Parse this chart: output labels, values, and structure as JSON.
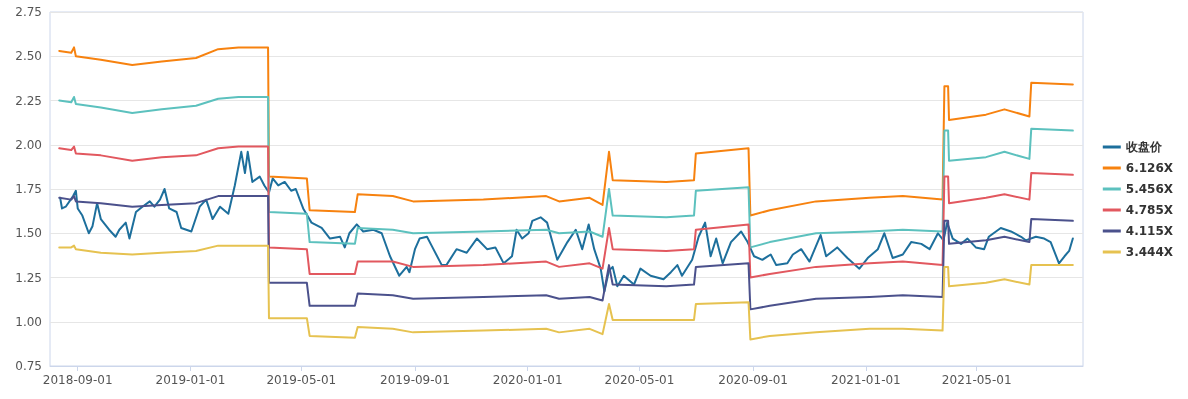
{
  "chart_data": {
    "type": "line",
    "x": [
      "2018-08-12",
      "2018-08-25",
      "2018-08-28",
      "2018-08-30",
      "2018-09-26",
      "2018-10-30",
      "2018-12-01",
      "2019-01-07",
      "2019-01-31",
      "2019-02-22",
      "2019-03-26",
      "2019-03-27",
      "2019-05-07",
      "2019-05-10",
      "2019-06-28",
      "2019-07-01",
      "2019-08-08",
      "2019-08-30",
      "2019-11-14",
      "2020-01-21",
      "2020-02-04",
      "2020-03-08",
      "2020-03-22",
      "2020-03-29",
      "2020-04-02",
      "2020-05-30",
      "2020-06-29",
      "2020-07-01",
      "2020-08-27",
      "2020-08-29",
      "2020-09-19",
      "2020-11-08",
      "2021-01-05",
      "2021-02-10",
      "2021-03-25",
      "2021-03-27",
      "2021-03-31",
      "2021-04-01",
      "2021-05-11",
      "2021-05-31",
      "2021-06-27",
      "2021-06-29",
      "2021-08-13"
    ],
    "series": [
      {
        "name": "收盘价",
        "color": "#1d6f9c",
        "x": [
          "2018-08-13",
          "2018-08-15",
          "2018-08-19",
          "2018-08-27",
          "2018-08-30",
          "2018-09-01",
          "2018-09-06",
          "2018-09-13",
          "2018-09-17",
          "2018-09-22",
          "2018-09-26",
          "2018-10-05",
          "2018-10-12",
          "2018-10-16",
          "2018-10-23",
          "2018-10-27",
          "2018-11-03",
          "2018-11-10",
          "2018-11-18",
          "2018-11-23",
          "2018-11-29",
          "2018-12-04",
          "2018-12-09",
          "2018-12-17",
          "2018-12-22",
          "2019-01-02",
          "2019-01-11",
          "2019-01-18",
          "2019-01-25",
          "2019-02-02",
          "2019-02-11",
          "2019-02-18",
          "2019-02-25",
          "2019-03-01",
          "2019-03-04",
          "2019-03-09",
          "2019-03-17",
          "2019-03-22",
          "2019-03-27",
          "2019-03-31",
          "2019-04-06",
          "2019-04-13",
          "2019-04-20",
          "2019-04-25",
          "2019-05-03",
          "2019-05-12",
          "2019-05-23",
          "2019-06-01",
          "2019-06-12",
          "2019-06-17",
          "2019-06-22",
          "2019-06-30",
          "2019-07-07",
          "2019-07-18",
          "2019-07-27",
          "2019-08-05",
          "2019-08-15",
          "2019-08-23",
          "2019-08-26",
          "2019-09-01",
          "2019-09-06",
          "2019-09-14",
          "2019-09-19",
          "2019-09-30",
          "2019-10-05",
          "2019-10-16",
          "2019-10-27",
          "2019-11-07",
          "2019-11-18",
          "2019-11-27",
          "2019-12-06",
          "2019-12-15",
          "2019-12-20",
          "2019-12-26",
          "2020-01-02",
          "2020-01-06",
          "2020-01-15",
          "2020-01-22",
          "2020-02-02",
          "2020-02-13",
          "2020-02-22",
          "2020-02-29",
          "2020-03-07",
          "2020-03-13",
          "2020-03-20",
          "2020-03-24",
          "2020-03-29",
          "2020-04-02",
          "2020-04-07",
          "2020-04-14",
          "2020-04-25",
          "2020-05-02",
          "2020-05-13",
          "2020-05-27",
          "2020-06-04",
          "2020-06-11",
          "2020-06-16",
          "2020-06-27",
          "2020-07-04",
          "2020-07-11",
          "2020-07-17",
          "2020-07-23",
          "2020-07-30",
          "2020-08-08",
          "2020-08-19",
          "2020-08-26",
          "2020-09-02",
          "2020-09-11",
          "2020-09-20",
          "2020-09-26",
          "2020-10-08",
          "2020-10-14",
          "2020-10-23",
          "2020-11-01",
          "2020-11-13",
          "2020-11-19",
          "2020-12-01",
          "2020-12-12",
          "2020-12-25",
          "2021-01-03",
          "2021-01-14",
          "2021-01-21",
          "2021-01-30",
          "2021-02-10",
          "2021-02-19",
          "2021-03-02",
          "2021-03-11",
          "2021-03-20",
          "2021-03-26",
          "2021-03-30",
          "2021-04-05",
          "2021-04-14",
          "2021-04-21",
          "2021-04-30",
          "2021-05-09",
          "2021-05-14",
          "2021-05-27",
          "2021-06-07",
          "2021-06-18",
          "2021-06-23",
          "2021-07-04",
          "2021-07-13",
          "2021-07-20",
          "2021-07-29",
          "2021-08-04",
          "2021-08-09",
          "2021-08-13"
        ],
        "values": [
          1.7,
          1.64,
          1.65,
          1.71,
          1.74,
          1.64,
          1.6,
          1.5,
          1.54,
          1.67,
          1.58,
          1.52,
          1.48,
          1.52,
          1.56,
          1.47,
          1.62,
          1.65,
          1.68,
          1.65,
          1.69,
          1.75,
          1.64,
          1.62,
          1.53,
          1.51,
          1.65,
          1.69,
          1.58,
          1.65,
          1.61,
          1.77,
          1.96,
          1.84,
          1.96,
          1.79,
          1.82,
          1.77,
          1.73,
          1.81,
          1.77,
          1.79,
          1.74,
          1.75,
          1.64,
          1.56,
          1.53,
          1.47,
          1.48,
          1.42,
          1.5,
          1.55,
          1.51,
          1.52,
          1.5,
          1.37,
          1.26,
          1.31,
          1.28,
          1.41,
          1.47,
          1.48,
          1.43,
          1.32,
          1.32,
          1.41,
          1.39,
          1.47,
          1.41,
          1.42,
          1.33,
          1.37,
          1.52,
          1.47,
          1.5,
          1.57,
          1.59,
          1.56,
          1.35,
          1.45,
          1.52,
          1.41,
          1.55,
          1.41,
          1.3,
          1.17,
          1.29,
          1.31,
          1.2,
          1.26,
          1.21,
          1.3,
          1.26,
          1.24,
          1.28,
          1.32,
          1.26,
          1.35,
          1.48,
          1.56,
          1.37,
          1.47,
          1.33,
          1.45,
          1.51,
          1.45,
          1.37,
          1.35,
          1.38,
          1.32,
          1.33,
          1.38,
          1.41,
          1.34,
          1.49,
          1.37,
          1.42,
          1.36,
          1.3,
          1.36,
          1.41,
          1.5,
          1.36,
          1.38,
          1.45,
          1.44,
          1.41,
          1.5,
          1.46,
          1.56,
          1.47,
          1.44,
          1.47,
          1.42,
          1.41,
          1.48,
          1.53,
          1.51,
          1.48,
          1.46,
          1.48,
          1.47,
          1.45,
          1.33,
          1.37,
          1.4,
          1.47
        ]
      },
      {
        "name": "6.126X",
        "color": "#f7820f",
        "values": [
          2.53,
          2.52,
          2.55,
          2.5,
          2.48,
          2.45,
          2.47,
          2.49,
          2.54,
          2.55,
          2.55,
          1.82,
          1.81,
          1.63,
          1.62,
          1.72,
          1.71,
          1.68,
          1.69,
          1.71,
          1.68,
          1.7,
          1.66,
          1.96,
          1.8,
          1.79,
          1.8,
          1.95,
          1.98,
          1.6,
          1.63,
          1.68,
          1.7,
          1.71,
          1.69,
          2.33,
          2.33,
          2.14,
          2.17,
          2.2,
          2.16,
          2.35,
          2.34
        ]
      },
      {
        "name": "5.456X",
        "color": "#5cc1be",
        "values": [
          2.25,
          2.24,
          2.27,
          2.23,
          2.21,
          2.18,
          2.2,
          2.22,
          2.26,
          2.27,
          2.27,
          1.62,
          1.61,
          1.45,
          1.44,
          1.53,
          1.52,
          1.5,
          1.51,
          1.52,
          1.5,
          1.51,
          1.48,
          1.75,
          1.6,
          1.59,
          1.6,
          1.74,
          1.76,
          1.42,
          1.45,
          1.5,
          1.51,
          1.52,
          1.51,
          2.08,
          2.08,
          1.91,
          1.93,
          1.96,
          1.92,
          2.09,
          2.08
        ]
      },
      {
        "name": "4.785X",
        "color": "#e2585f",
        "values": [
          1.98,
          1.97,
          1.99,
          1.95,
          1.94,
          1.91,
          1.93,
          1.94,
          1.98,
          1.99,
          1.99,
          1.42,
          1.41,
          1.27,
          1.27,
          1.34,
          1.34,
          1.31,
          1.32,
          1.34,
          1.31,
          1.33,
          1.3,
          1.53,
          1.41,
          1.4,
          1.41,
          1.52,
          1.55,
          1.25,
          1.27,
          1.31,
          1.33,
          1.34,
          1.32,
          1.82,
          1.82,
          1.67,
          1.7,
          1.72,
          1.69,
          1.84,
          1.83
        ]
      },
      {
        "name": "4.115X",
        "color": "#4b518c",
        "values": [
          1.7,
          1.69,
          1.71,
          1.68,
          1.67,
          1.65,
          1.66,
          1.67,
          1.71,
          1.71,
          1.71,
          1.22,
          1.22,
          1.09,
          1.09,
          1.16,
          1.15,
          1.13,
          1.14,
          1.15,
          1.13,
          1.14,
          1.12,
          1.32,
          1.21,
          1.2,
          1.21,
          1.31,
          1.33,
          1.07,
          1.09,
          1.13,
          1.14,
          1.15,
          1.14,
          1.57,
          1.57,
          1.44,
          1.46,
          1.48,
          1.45,
          1.58,
          1.57
        ]
      },
      {
        "name": "3.444X",
        "color": "#e6c250",
        "values": [
          1.42,
          1.42,
          1.43,
          1.41,
          1.39,
          1.38,
          1.39,
          1.4,
          1.43,
          1.43,
          1.43,
          1.02,
          1.02,
          0.92,
          0.91,
          0.97,
          0.96,
          0.94,
          0.95,
          0.96,
          0.94,
          0.96,
          0.93,
          1.1,
          1.01,
          1.01,
          1.01,
          1.1,
          1.11,
          0.9,
          0.92,
          0.94,
          0.96,
          0.96,
          0.95,
          1.31,
          1.31,
          1.2,
          1.22,
          1.24,
          1.21,
          1.32,
          1.32
        ]
      }
    ],
    "xlim": [
      "2018-08-02",
      "2021-08-24"
    ],
    "xticks": [
      "2018-09-01",
      "2019-01-01",
      "2019-05-01",
      "2019-09-01",
      "2020-01-01",
      "2020-05-01",
      "2020-09-01",
      "2021-01-01",
      "2021-05-01"
    ],
    "ylim": [
      0.75,
      2.75
    ],
    "yticks": [
      0.75,
      {
        "value": 1,
        "label": "1.00"
      },
      1.25,
      {
        "value": 1.5,
        "label": "1.50"
      },
      1.75,
      {
        "value": 2,
        "label": "2.00"
      },
      2.25,
      {
        "value": 2.5,
        "label": "2.50"
      },
      2.75
    ],
    "grid": "y",
    "legend": "right",
    "marker": "none",
    "line_style": "solid"
  }
}
